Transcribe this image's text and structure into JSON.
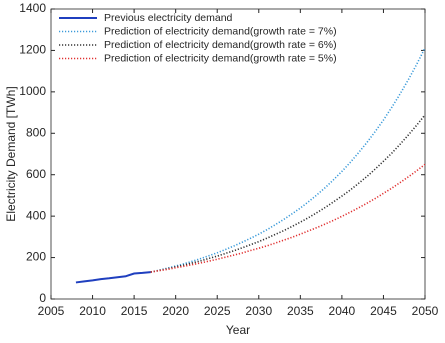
{
  "chart_data": {
    "type": "line",
    "xlabel": "Year",
    "ylabel": "Electricity Demand [TWh]",
    "x": [
      2008,
      2009,
      2010,
      2011,
      2012,
      2013,
      2014,
      2015,
      2016,
      2017,
      2018,
      2019,
      2020,
      2021,
      2022,
      2023,
      2024,
      2025,
      2026,
      2027,
      2028,
      2029,
      2030,
      2031,
      2032,
      2033,
      2034,
      2035,
      2036,
      2037,
      2038,
      2039,
      2040,
      2041,
      2042,
      2043,
      2044,
      2045,
      2046,
      2047,
      2048,
      2049,
      2050
    ],
    "xlim": [
      2005,
      2050
    ],
    "xticks": [
      2005,
      2010,
      2015,
      2020,
      2025,
      2030,
      2035,
      2040,
      2045,
      2050
    ],
    "ylim": [
      0,
      1400
    ],
    "yticks": [
      0,
      200,
      400,
      600,
      800,
      1000,
      1200,
      1400
    ],
    "legend": "upper left",
    "grid": false,
    "series": [
      {
        "name": "Previous electricity demand",
        "color": "#1f3fbf",
        "style": "solid",
        "values": [
          80,
          85,
          90,
          96,
          100,
          105,
          110,
          123,
          126,
          130,
          null,
          null,
          null,
          null,
          null,
          null,
          null,
          null,
          null,
          null,
          null,
          null,
          null,
          null,
          null,
          null,
          null,
          null,
          null,
          null,
          null,
          null,
          null,
          null,
          null,
          null,
          null,
          null,
          null,
          null,
          null,
          null,
          null
        ]
      },
      {
        "name": "Prediction of electricity demand(growth rate = 7%)",
        "color": "#3a9ad9",
        "style": "dotted",
        "values": [
          null,
          null,
          null,
          null,
          null,
          null,
          null,
          null,
          null,
          130,
          139,
          149,
          159,
          170,
          182,
          195,
          209,
          223,
          239,
          256,
          274,
          293,
          313,
          335,
          359,
          384,
          411,
          439,
          470,
          503,
          538,
          576,
          616,
          659,
          706,
          755,
          808,
          864,
          925,
          990,
          1059,
          1133,
          1212
        ]
      },
      {
        "name": "Prediction of electricity demand(growth rate = 6%)",
        "color": "#333333",
        "style": "dotted",
        "values": [
          null,
          null,
          null,
          null,
          null,
          null,
          null,
          null,
          null,
          130,
          138,
          146,
          155,
          164,
          174,
          184,
          196,
          207,
          220,
          233,
          247,
          262,
          277,
          294,
          312,
          330,
          350,
          371,
          393,
          417,
          442,
          469,
          497,
          526,
          558,
          591,
          627,
          665,
          704,
          747,
          792,
          839,
          889
        ]
      },
      {
        "name": "Prediction of electricity demand(growth rate = 5%)",
        "color": "#e03030",
        "style": "dotted",
        "values": [
          null,
          null,
          null,
          null,
          null,
          null,
          null,
          null,
          null,
          130,
          137,
          143,
          151,
          158,
          166,
          174,
          183,
          192,
          202,
          212,
          222,
          234,
          245,
          257,
          270,
          284,
          298,
          313,
          329,
          345,
          362,
          380,
          399,
          419,
          440,
          462,
          485,
          510,
          535,
          562,
          590,
          619,
          650
        ]
      }
    ]
  }
}
